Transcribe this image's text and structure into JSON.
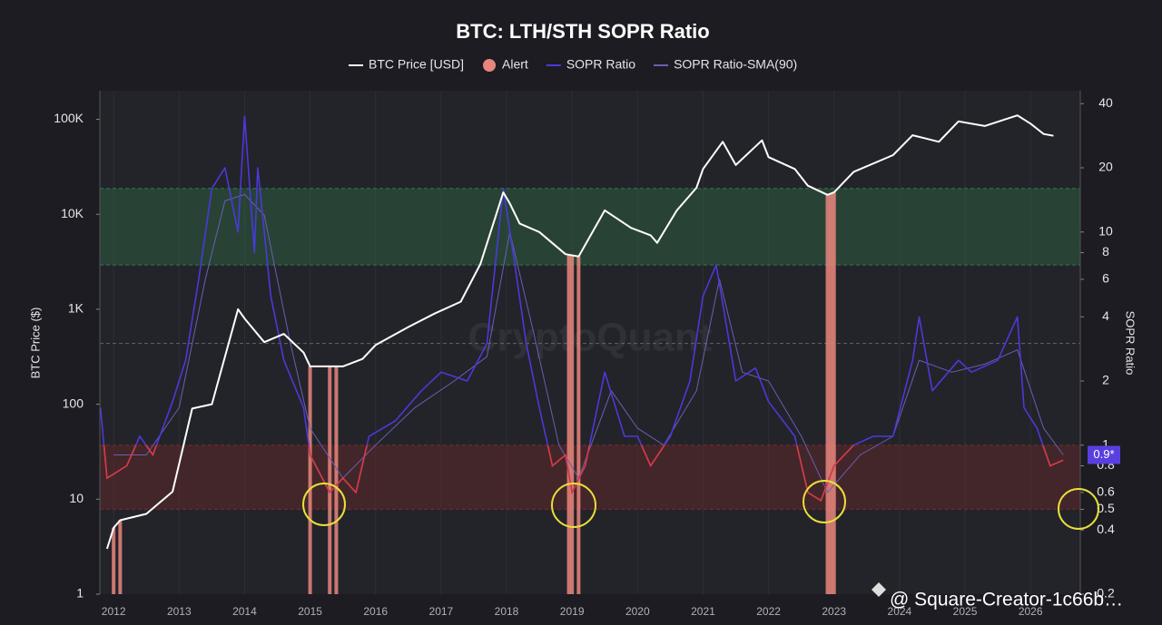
{
  "chart_data": {
    "type": "line",
    "title": "BTC: LTH/STH SOPR Ratio",
    "y_label": "BTC Price ($)",
    "y2_label": "SOPR Ratio",
    "watermark": "CryptoQuant",
    "footer": "@ Square-Creator-1c66b…",
    "log_y": true,
    "log_y2": true,
    "xlim": [
      2011.79,
      2026.76
    ],
    "xticks": [
      2012,
      2013,
      2014,
      2015,
      2016,
      2017,
      2018,
      2019,
      2020,
      2021,
      2022,
      2023,
      2024,
      2025,
      2026
    ],
    "ylim": [
      1,
      200000
    ],
    "yticks": [
      1,
      10,
      100,
      {
        "value": 1000,
        "label": "1K"
      },
      {
        "value": 10000,
        "label": "10K"
      },
      {
        "value": 100000,
        "label": "100K"
      }
    ],
    "y2lim": [
      0.2,
      46
    ],
    "y2ticks": [
      0.2,
      0.4,
      0.5,
      0.6,
      0.8,
      1,
      2,
      4,
      6,
      8,
      10,
      20,
      40
    ],
    "zones": [
      {
        "from": 7,
        "to": 16,
        "color": "#2f6b45"
      },
      {
        "from": 0.5,
        "to": 1,
        "color": "#6b2a2a"
      }
    ],
    "reference_lines": [
      3
    ],
    "current_value": {
      "value": 0.9,
      "label": "0.9*",
      "color": "#5a3fe0"
    },
    "series": [
      {
        "name": "BTC Price [USD]",
        "color": "#ffffff",
        "axis": "y",
        "x": [
          2011.9,
          2012.0,
          2012.1,
          2012.5,
          2012.9,
          2013.2,
          2013.5,
          2013.9,
          2014.0,
          2014.3,
          2014.6,
          2014.9,
          2015.0,
          2015.5,
          2015.8,
          2016.0,
          2016.5,
          2016.9,
          2017.3,
          2017.6,
          2017.95,
          2018.05,
          2018.2,
          2018.5,
          2018.9,
          2019.1,
          2019.5,
          2019.9,
          2020.2,
          2020.3,
          2020.6,
          2020.9,
          2021.0,
          2021.3,
          2021.5,
          2021.9,
          2022.0,
          2022.4,
          2022.6,
          2022.9,
          2023.0,
          2023.3,
          2023.9,
          2024.2,
          2024.6,
          2024.9,
          2025.3,
          2025.8,
          2026.0,
          2026.2,
          2026.35
        ],
        "values": [
          3,
          5,
          6,
          7,
          12,
          90,
          100,
          1000,
          800,
          450,
          550,
          350,
          250,
          250,
          300,
          420,
          650,
          900,
          1200,
          3000,
          17000,
          13000,
          8000,
          6500,
          3800,
          3600,
          11000,
          7200,
          6000,
          5000,
          11000,
          19000,
          30000,
          58000,
          33000,
          60000,
          40000,
          30000,
          20000,
          16000,
          17000,
          28000,
          42000,
          68000,
          58000,
          95000,
          85000,
          110000,
          90000,
          70000,
          67000
        ]
      },
      {
        "name": "Alert",
        "color": "#e8867c",
        "x": [
          2012.0,
          2012.1,
          2015.0,
          2015.3,
          2015.4,
          2018.95,
          2019.0,
          2019.1,
          2022.9,
          2022.95,
          2023.0
        ]
      },
      {
        "name": "SOPR Ratio",
        "color": "#4a3ad8",
        "axis": "y2",
        "below": {
          "value": 1,
          "color": "#d93b3b"
        },
        "x": [
          2011.8,
          2011.9,
          2012.2,
          2012.4,
          2012.6,
          2012.9,
          2013.1,
          2013.3,
          2013.5,
          2013.7,
          2013.9,
          2014.0,
          2014.15,
          2014.2,
          2014.4,
          2014.6,
          2014.9,
          2015.0,
          2015.3,
          2015.5,
          2015.7,
          2015.9,
          2016.3,
          2016.7,
          2017.0,
          2017.4,
          2017.7,
          2017.95,
          2018.1,
          2018.3,
          2018.5,
          2018.7,
          2018.9,
          2019.0,
          2019.2,
          2019.5,
          2019.8,
          2020.0,
          2020.2,
          2020.5,
          2020.8,
          2021.0,
          2021.2,
          2021.5,
          2021.8,
          2022.0,
          2022.4,
          2022.6,
          2022.8,
          2023.0,
          2023.3,
          2023.6,
          2023.9,
          2024.2,
          2024.3,
          2024.5,
          2024.9,
          2025.1,
          2025.5,
          2025.8,
          2025.9,
          2026.1,
          2026.3,
          2026.5
        ],
        "values": [
          1.5,
          0.7,
          0.8,
          1.1,
          0.9,
          1.6,
          2.5,
          6,
          16,
          20,
          10,
          35,
          8,
          20,
          5,
          2.5,
          1.5,
          0.9,
          0.6,
          0.7,
          0.6,
          1.1,
          1.3,
          1.8,
          2.2,
          2,
          3,
          16,
          8,
          3,
          1.5,
          0.8,
          0.9,
          0.6,
          0.8,
          2.2,
          1.1,
          1.1,
          0.8,
          1.1,
          2,
          5,
          7,
          2,
          2.3,
          1.6,
          1.1,
          0.6,
          0.55,
          0.8,
          1.0,
          1.1,
          1.1,
          2.5,
          4,
          1.8,
          2.5,
          2.2,
          2.5,
          4,
          1.5,
          1.2,
          0.8,
          0.85
        ]
      },
      {
        "name": "SOPR Ratio-SMA(90)",
        "color": "#6a5fb0",
        "axis": "y2",
        "x": [
          2012.0,
          2012.5,
          2013.0,
          2013.4,
          2013.7,
          2014.0,
          2014.3,
          2014.7,
          2015.0,
          2015.5,
          2016.0,
          2016.6,
          2017.2,
          2017.7,
          2018.05,
          2018.4,
          2018.8,
          2019.1,
          2019.6,
          2020.0,
          2020.4,
          2020.9,
          2021.25,
          2021.6,
          2022.0,
          2022.5,
          2022.9,
          2023.4,
          2023.9,
          2024.3,
          2024.8,
          2025.3,
          2025.8,
          2026.2,
          2026.5
        ],
        "values": [
          0.9,
          0.9,
          1.5,
          6,
          14,
          15,
          12,
          3,
          1.2,
          0.7,
          1.0,
          1.5,
          2.0,
          2.6,
          10,
          3.5,
          1.0,
          0.7,
          1.8,
          1.2,
          1.0,
          1.8,
          6,
          2.2,
          2.0,
          1.1,
          0.6,
          0.9,
          1.1,
          2.5,
          2.2,
          2.4,
          2.8,
          1.2,
          0.9
        ]
      }
    ]
  }
}
